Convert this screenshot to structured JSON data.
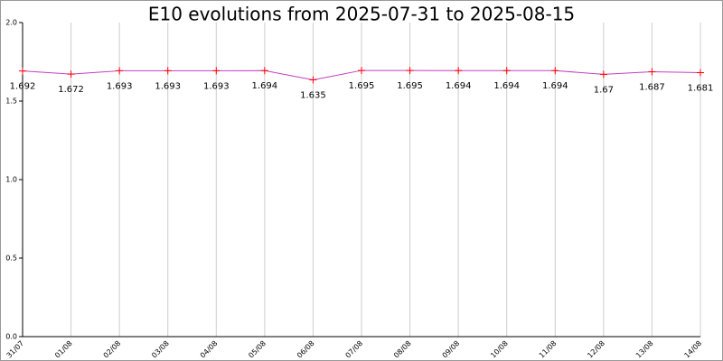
{
  "chart_data": {
    "type": "line",
    "title": "E10 evolutions from 2025-07-31 to 2025-08-15",
    "categories": [
      "31/07",
      "01/08",
      "02/08",
      "03/08",
      "04/08",
      "05/08",
      "06/08",
      "07/08",
      "08/08",
      "09/08",
      "10/08",
      "11/08",
      "12/08",
      "13/08",
      "14/08"
    ],
    "series": [
      {
        "color": "#c040c0",
        "marker_color": "#ff0000",
        "values": [
          1.692,
          1.672,
          1.693,
          1.693,
          1.693,
          1.694,
          1.635,
          1.695,
          1.695,
          1.694,
          1.694,
          1.694,
          1.67,
          1.687,
          1.681
        ]
      }
    ],
    "ylim": [
      0,
      2
    ],
    "yticks": [
      {
        "value": 0,
        "label": "0.0"
      },
      {
        "value": 0.5,
        "label": "0.5"
      },
      {
        "value": 1,
        "label": "1.0"
      },
      {
        "value": 1.5,
        "label": "1.5"
      },
      {
        "value": 2,
        "label": "2.0"
      }
    ],
    "grid": true
  }
}
